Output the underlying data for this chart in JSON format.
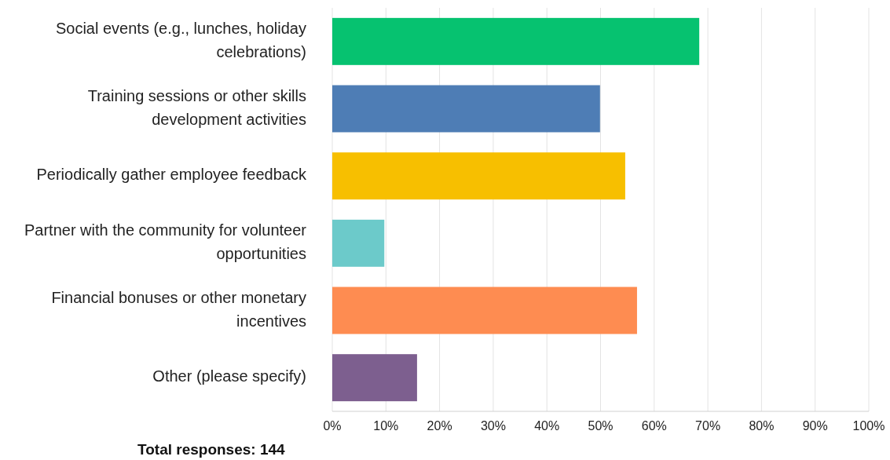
{
  "chart_data": {
    "type": "bar",
    "orientation": "horizontal",
    "categories": [
      "Social events (e.g., lunches, holiday celebrations)",
      "Training sessions or other skills development activities",
      "Periodically gather employee feedback",
      "Partner with the community for volunteer opportunities",
      "Financial bonuses or other monetary incentives",
      "Other (please specify)"
    ],
    "values": [
      68.4,
      49.9,
      54.6,
      9.7,
      56.8,
      15.8
    ],
    "colors": [
      "#06c270",
      "#4e7db5",
      "#f7bf00",
      "#6ccaca",
      "#fe8c51",
      "#7d5f8f"
    ],
    "xlim": [
      0,
      100
    ],
    "xticks": [
      {
        "value": 0,
        "label": "0%"
      },
      {
        "value": 10,
        "label": "10%"
      },
      {
        "value": 20,
        "label": "20%"
      },
      {
        "value": 30,
        "label": "30%"
      },
      {
        "value": 40,
        "label": "40%"
      },
      {
        "value": 50,
        "label": "50%"
      },
      {
        "value": 60,
        "label": "60%"
      },
      {
        "value": 70,
        "label": "70%"
      },
      {
        "value": 80,
        "label": "80%"
      },
      {
        "value": 90,
        "label": "90%"
      },
      {
        "value": 100,
        "label": "100%"
      }
    ],
    "grid": "x",
    "annotations": [
      "Total responses: 144"
    ]
  }
}
